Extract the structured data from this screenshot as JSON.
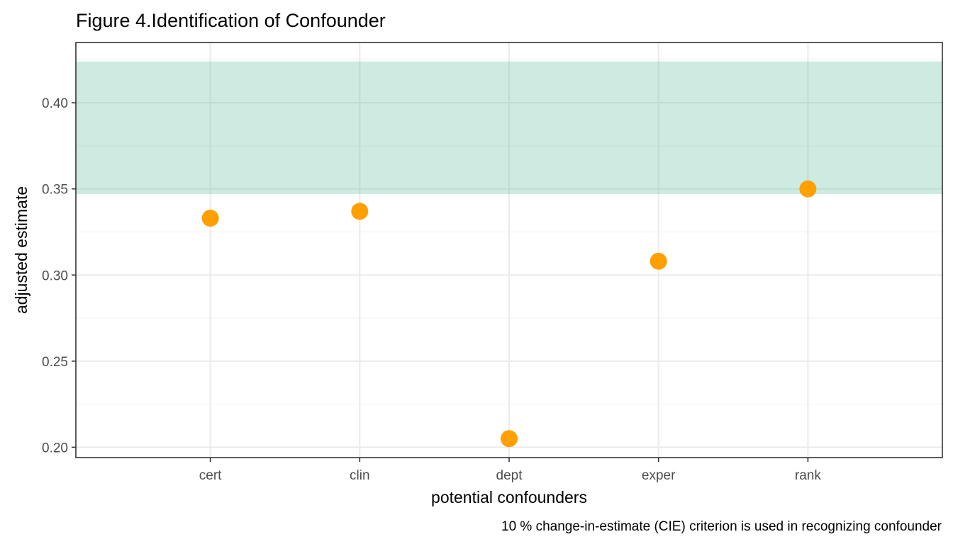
{
  "chart_data": {
    "type": "scatter",
    "title": "Figure 4.Identification of Confounder",
    "xlabel": "potential confounders",
    "ylabel": "adjusted estimate",
    "caption": "10 % change-in-estimate (CIE) criterion is used in recognizing confounder",
    "categories": [
      "cert",
      "clin",
      "dept",
      "exper",
      "rank"
    ],
    "values": [
      0.333,
      0.337,
      0.205,
      0.308,
      0.35
    ],
    "ylim": [
      0.194,
      0.435
    ],
    "yticks": [
      0.2,
      0.25,
      0.3,
      0.35,
      0.4
    ],
    "ytick_labels": [
      "0.20",
      "0.25",
      "0.30",
      "0.35",
      "0.40"
    ],
    "band": {
      "ymin": 0.347,
      "ymax": 0.424,
      "color": "#66c2a5",
      "opacity": 0.33
    },
    "point_color": "#ffa000",
    "grid": true,
    "legend": "none"
  }
}
